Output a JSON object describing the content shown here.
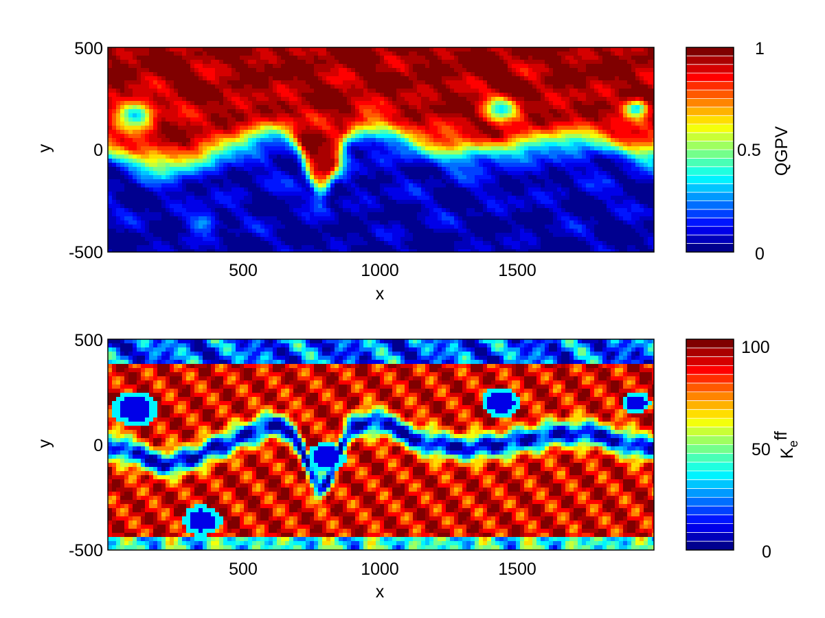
{
  "colors": {
    "jet": [
      "#00008f",
      "#0000ff",
      "#00ffff",
      "#ffff00",
      "#ff0000",
      "#800000"
    ],
    "frame": "#000000",
    "background": "#ffffff"
  },
  "chart_data": [
    {
      "type": "heatmap",
      "title": "",
      "xlabel": "x",
      "ylabel": "y",
      "xlim": [
        0,
        2000
      ],
      "ylim": [
        -500,
        500
      ],
      "xticks": [
        "500",
        "1000",
        "1500"
      ],
      "yticks": [
        "-500",
        "0",
        "500"
      ],
      "colorbar": {
        "label": "QGPV",
        "range": [
          0,
          1
        ],
        "levels": 24,
        "ticks": [
          "0",
          "0.5",
          "1"
        ]
      },
      "description_of_field": "north high (~0.9), south low (~0.1), meandering jet near y=0 with eddies"
    },
    {
      "type": "heatmap",
      "title": "",
      "xlabel": "x",
      "ylabel": "y",
      "xlim": [
        0,
        2000
      ],
      "ylim": [
        -500,
        500
      ],
      "xticks": [
        "500",
        "1000",
        "1500"
      ],
      "yticks": [
        "-500",
        "0",
        "500"
      ],
      "colorbar": {
        "label_main": "K",
        "label_sub": "e",
        "label_sup": "ff",
        "range": [
          0,
          105
        ],
        "levels": 24,
        "ticks": [
          "0",
          "50",
          "100"
        ]
      },
      "description_of_field": "low diffusivity along jet core and eddy centers, high elsewhere"
    }
  ]
}
